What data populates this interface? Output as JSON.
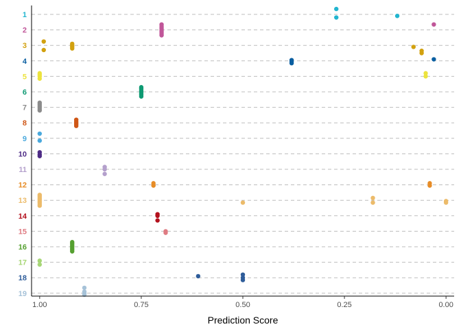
{
  "chart_data": {
    "type": "scatter",
    "title": "",
    "xlabel": "Prediction Score",
    "ylabel": "",
    "x_reversed": true,
    "xlim": [
      1.02,
      -0.02
    ],
    "xticks": [
      1.0,
      0.75,
      0.5,
      0.25,
      0.0
    ],
    "xtick_labels": [
      "1.00",
      "0.75",
      "0.50",
      "0.25",
      "0.00"
    ],
    "grid": "horizontal dashed",
    "legend": "none",
    "categories": [
      "1",
      "2",
      "3",
      "4",
      "5",
      "6",
      "7",
      "8",
      "9",
      "10",
      "11",
      "12",
      "13",
      "14",
      "15",
      "16",
      "17",
      "18",
      "19"
    ],
    "category_colors": [
      "#22b5cf",
      "#c05699",
      "#d2a10f",
      "#0a5fa1",
      "#ece33e",
      "#0f9a73",
      "#8c8c8c",
      "#cf5717",
      "#4aa9dd",
      "#4e2c86",
      "#b4a0cc",
      "#e78c26",
      "#ecbb6a",
      "#b3101c",
      "#df7b82",
      "#55a030",
      "#a7d676",
      "#2f5d9a",
      "#a6c2d8"
    ],
    "series": [
      {
        "category": "1",
        "points": [
          [
            0.27,
            -0.35
          ],
          [
            0.27,
            0.2
          ],
          [
            0.12,
            0.1
          ]
        ]
      },
      {
        "category": "2",
        "points": [
          [
            0.7,
            -0.35
          ],
          [
            0.7,
            -0.25
          ],
          [
            0.7,
            -0.15
          ],
          [
            0.7,
            -0.05
          ],
          [
            0.7,
            0.05
          ],
          [
            0.7,
            0.15
          ],
          [
            0.7,
            0.25
          ],
          [
            0.7,
            0.35
          ],
          [
            0.03,
            -0.35
          ]
        ]
      },
      {
        "category": "3",
        "points": [
          [
            0.99,
            -0.25
          ],
          [
            0.99,
            0.3
          ],
          [
            0.92,
            -0.1
          ],
          [
            0.92,
            0.0
          ],
          [
            0.92,
            0.1
          ],
          [
            0.92,
            0.2
          ],
          [
            0.08,
            0.1
          ],
          [
            0.06,
            0.35
          ],
          [
            0.06,
            0.5
          ]
        ]
      },
      {
        "category": "4",
        "points": [
          [
            0.38,
            -0.05
          ],
          [
            0.38,
            0.05
          ],
          [
            0.38,
            0.15
          ],
          [
            0.03,
            -0.1
          ]
        ]
      },
      {
        "category": "5",
        "points": [
          [
            1.0,
            -0.2
          ],
          [
            1.0,
            -0.1
          ],
          [
            1.0,
            0.0
          ],
          [
            1.0,
            0.15
          ],
          [
            0.05,
            -0.2
          ],
          [
            0.05,
            0.0
          ]
        ]
      },
      {
        "category": "6",
        "points": [
          [
            0.75,
            -0.3
          ],
          [
            0.75,
            -0.2
          ],
          [
            0.75,
            -0.1
          ],
          [
            0.75,
            0.0
          ],
          [
            0.75,
            0.1
          ],
          [
            0.75,
            0.2
          ],
          [
            0.75,
            0.3
          ]
        ]
      },
      {
        "category": "7",
        "points": [
          [
            1.0,
            -0.3
          ],
          [
            1.0,
            -0.2
          ],
          [
            1.0,
            -0.1
          ],
          [
            1.0,
            0.0
          ],
          [
            1.0,
            0.1
          ],
          [
            1.0,
            0.2
          ]
        ]
      },
      {
        "category": "8",
        "points": [
          [
            0.91,
            -0.2
          ],
          [
            0.91,
            -0.1
          ],
          [
            0.91,
            0.0
          ],
          [
            0.91,
            0.1
          ],
          [
            0.91,
            0.2
          ]
        ]
      },
      {
        "category": "9",
        "points": [
          [
            1.0,
            -0.3
          ],
          [
            1.0,
            0.15
          ]
        ]
      },
      {
        "category": "10",
        "points": [
          [
            1.0,
            -0.1
          ],
          [
            1.0,
            0.05
          ],
          [
            1.0,
            0.15
          ]
        ]
      },
      {
        "category": "11",
        "points": [
          [
            0.84,
            -0.15
          ],
          [
            0.84,
            0.0
          ],
          [
            0.84,
            0.3
          ]
        ]
      },
      {
        "category": "12",
        "points": [
          [
            0.72,
            -0.1
          ],
          [
            0.72,
            0.05
          ],
          [
            0.04,
            -0.1
          ],
          [
            0.04,
            0.05
          ]
        ]
      },
      {
        "category": "13",
        "points": [
          [
            1.0,
            -0.35
          ],
          [
            1.0,
            -0.25
          ],
          [
            1.0,
            -0.15
          ],
          [
            1.0,
            -0.05
          ],
          [
            1.0,
            0.05
          ],
          [
            1.0,
            0.15
          ],
          [
            1.0,
            0.25
          ],
          [
            1.0,
            0.35
          ],
          [
            0.5,
            0.15
          ],
          [
            0.18,
            -0.15
          ],
          [
            0.18,
            0.15
          ],
          [
            0.0,
            0.05
          ],
          [
            0.0,
            0.15
          ]
        ]
      },
      {
        "category": "14",
        "points": [
          [
            0.71,
            -0.1
          ],
          [
            0.71,
            0.0
          ],
          [
            0.71,
            0.3
          ]
        ]
      },
      {
        "category": "15",
        "points": [
          [
            0.69,
            0.0
          ],
          [
            0.69,
            0.1
          ]
        ]
      },
      {
        "category": "16",
        "points": [
          [
            0.92,
            -0.3
          ],
          [
            0.92,
            -0.2
          ],
          [
            0.92,
            -0.1
          ],
          [
            0.92,
            0.0
          ],
          [
            0.92,
            0.1
          ],
          [
            0.92,
            0.2
          ],
          [
            0.92,
            0.3
          ]
        ]
      },
      {
        "category": "17",
        "points": [
          [
            1.0,
            -0.1
          ],
          [
            1.0,
            0.15
          ]
        ]
      },
      {
        "category": "18",
        "points": [
          [
            0.61,
            -0.1
          ],
          [
            0.5,
            -0.2
          ],
          [
            0.5,
            0.0
          ],
          [
            0.5,
            0.15
          ]
        ]
      },
      {
        "category": "19",
        "points": [
          [
            0.89,
            -0.35
          ],
          [
            0.89,
            -0.1
          ],
          [
            0.89,
            0.0
          ],
          [
            0.89,
            0.1
          ]
        ]
      }
    ]
  }
}
